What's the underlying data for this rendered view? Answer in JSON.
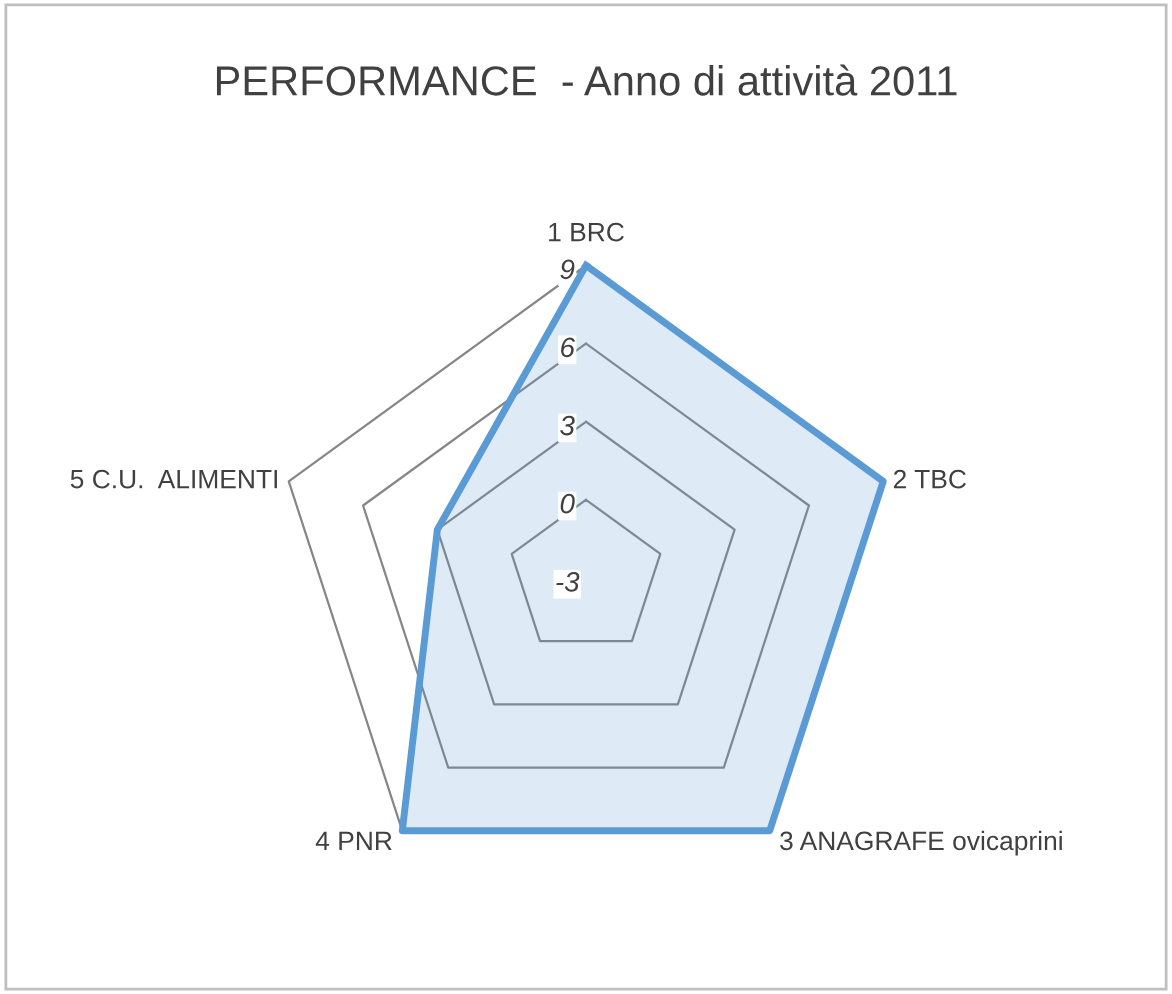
{
  "chart_data": {
    "type": "radar",
    "title": "PERFORMANCE  - Anno di attività 2011",
    "categories": [
      "1 BRC",
      "2 TBC",
      "3 ANAGRAFE ovicaprini",
      "4 PNR",
      "5 C.U.  ALIMENTI"
    ],
    "series": [
      {
        "color": "#5b9bd5",
        "values": [
          9,
          9,
          9,
          9,
          3
        ]
      }
    ],
    "ylim": [
      -3,
      9
    ],
    "yticks": [
      -3,
      0,
      3,
      6,
      9
    ],
    "grid": true,
    "legend": false
  }
}
